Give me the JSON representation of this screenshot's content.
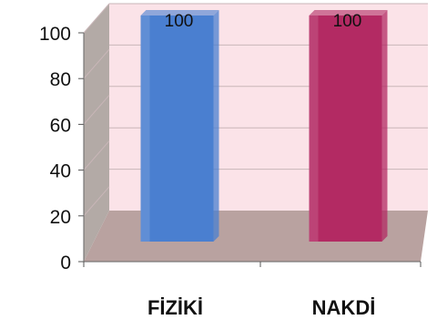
{
  "chart_data": {
    "type": "bar",
    "categories": [
      "FİZİKİ",
      "NAKDİ"
    ],
    "values": [
      100,
      100
    ],
    "ylim": [
      0,
      100
    ],
    "yticks": [
      0,
      20,
      40,
      60,
      80,
      100
    ],
    "data_labels": [
      "100",
      "100"
    ],
    "style": "3d-column",
    "grid": true,
    "legend": "none",
    "colors": {
      "bars": [
        "#4a7fd0",
        "#b32a63"
      ],
      "back_wall": "#fbe3e8",
      "side_wall": "#b3aaa6",
      "floor": "#b9a2a0",
      "grid": "#c9b6b8"
    }
  }
}
